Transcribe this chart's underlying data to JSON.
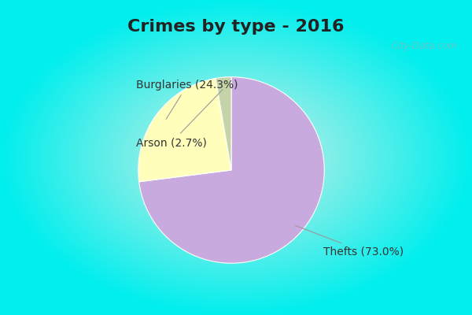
{
  "title": "Crimes by type - 2016",
  "slices": [
    {
      "label": "Thefts (73.0%)",
      "value": 73.0,
      "color": "#C9AADE"
    },
    {
      "label": "Burglaries (24.3%)",
      "value": 24.3,
      "color": "#FFFFBB"
    },
    {
      "label": "Arson (2.7%)",
      "value": 2.7,
      "color": "#C5D4A8"
    }
  ],
  "border_color": "#00EEEE",
  "bg_center_color": "#D8EEE4",
  "title_fontsize": 16,
  "label_fontsize": 10,
  "watermark": "City-Data.com",
  "startangle": 90,
  "border_width": 8
}
